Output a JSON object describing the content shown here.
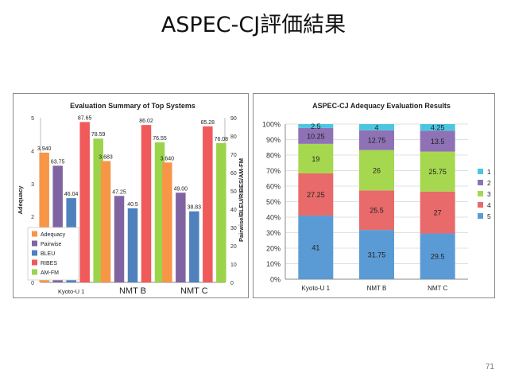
{
  "slide": {
    "title": "ASPEC-CJ評価結果",
    "page_number": "71"
  },
  "chart_data": [
    {
      "type": "bar",
      "title": "Evaluation Summary of Top Systems",
      "ylabel": "Adequacy",
      "y2label": "Pairwise/BLEU/RIBES/AM-FM",
      "categories": [
        "Kyoto-U 1",
        "NMT B",
        "NMT C"
      ],
      "ylim": [
        0,
        5
      ],
      "y2lim": [
        0,
        90
      ],
      "yticks": [
        "0",
        "1",
        "2",
        "3",
        "4",
        "5"
      ],
      "y2ticks": [
        "0",
        "10",
        "20",
        "30",
        "40",
        "50",
        "60",
        "70",
        "80",
        "90"
      ],
      "legend_position": "bottom-left",
      "series": [
        {
          "name": "Adequacy",
          "axis": "left",
          "color": "#f79646",
          "values": [
            3.94,
            3.683,
            3.64
          ],
          "labels": [
            "3.940",
            "3.683",
            "3.640"
          ]
        },
        {
          "name": "Pairwise",
          "axis": "right",
          "color": "#8064a2",
          "values": [
            63.75,
            47.25,
            49.0
          ],
          "labels": [
            "63.75",
            "47.25",
            "49.00"
          ]
        },
        {
          "name": "BLEU",
          "axis": "right",
          "color": "#4f81bd",
          "values": [
            46.04,
            40.5,
            38.83
          ],
          "labels": [
            "46.04",
            "40.5",
            "38.83"
          ]
        },
        {
          "name": "RIBES",
          "axis": "right",
          "color": "#f05a5a",
          "values": [
            87.65,
            86.02,
            85.28
          ],
          "labels": [
            "87.65",
            "86.02",
            "85.28"
          ]
        },
        {
          "name": "AM-FM",
          "axis": "right",
          "color": "#9bd34a",
          "values": [
            78.59,
            76.55,
            76.08
          ],
          "labels": [
            "78.59",
            "76.55",
            "76.08"
          ]
        }
      ]
    },
    {
      "type": "bar",
      "stacked": "percent",
      "title": "ASPEC-CJ Adequacy Evaluation Results",
      "categories": [
        "Kyoto-U 1",
        "NMT B",
        "NMT C"
      ],
      "ylim": [
        0,
        100
      ],
      "yticks": [
        "0%",
        "10%",
        "20%",
        "30%",
        "40%",
        "50%",
        "60%",
        "70%",
        "80%",
        "90%",
        "100%"
      ],
      "legend_position": "right",
      "series": [
        {
          "name": "5",
          "color": "#5b9bd5",
          "values": [
            41,
            31.75,
            29.5
          ],
          "labels": [
            "41",
            "31.75",
            "29.5"
          ]
        },
        {
          "name": "4",
          "color": "#e96a6a",
          "values": [
            27.25,
            25.5,
            27
          ],
          "labels": [
            "27.25",
            "25.5",
            "27"
          ]
        },
        {
          "name": "3",
          "color": "#a6d84f",
          "values": [
            19,
            26,
            25.75
          ],
          "labels": [
            "19",
            "26",
            "25.75"
          ]
        },
        {
          "name": "2",
          "color": "#8e72b5",
          "values": [
            10.25,
            12.75,
            13.5
          ],
          "labels": [
            "10.25",
            "12.75",
            "13.5"
          ]
        },
        {
          "name": "1",
          "color": "#4cc6e0",
          "values": [
            2.5,
            4,
            4.25
          ],
          "labels": [
            "2.5",
            "4",
            "4.25"
          ]
        }
      ]
    }
  ]
}
